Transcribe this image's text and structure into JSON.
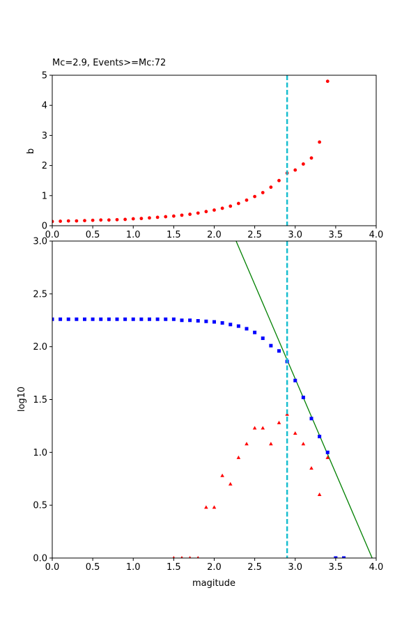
{
  "chart_data": [
    {
      "type": "scatter",
      "title": "Mc=2.9, Events>=Mc:72",
      "xlabel": "",
      "ylabel": "b",
      "xlim": [
        0,
        4
      ],
      "ylim": [
        0,
        5
      ],
      "xticks": [
        "0.0",
        "0.5",
        "1.0",
        "1.5",
        "2.0",
        "2.5",
        "3.0",
        "3.5",
        "4.0"
      ],
      "yticks": [
        "0",
        "1",
        "2",
        "3",
        "4",
        "5"
      ],
      "grid": false,
      "mc_line": 2.9,
      "colors": {
        "points": "#ff0000",
        "mc": "#17becf"
      },
      "series": [
        {
          "x": [
            0.0,
            0.1,
            0.2,
            0.3,
            0.4,
            0.5,
            0.6,
            0.7,
            0.8,
            0.9,
            1.0,
            1.1,
            1.2,
            1.3,
            1.4,
            1.5,
            1.6,
            1.7,
            1.8,
            1.9,
            2.0,
            2.1,
            2.2,
            2.3,
            2.4,
            2.5,
            2.6,
            2.7,
            2.8,
            2.9,
            3.0,
            3.1,
            3.2,
            3.3,
            3.4
          ],
          "y": [
            0.14,
            0.15,
            0.16,
            0.16,
            0.17,
            0.18,
            0.19,
            0.19,
            0.2,
            0.21,
            0.23,
            0.24,
            0.26,
            0.28,
            0.3,
            0.32,
            0.35,
            0.38,
            0.42,
            0.47,
            0.52,
            0.58,
            0.65,
            0.74,
            0.85,
            0.97,
            1.1,
            1.28,
            1.5,
            1.75,
            1.85,
            2.05,
            2.25,
            2.78,
            4.8
          ]
        }
      ]
    },
    {
      "type": "scatter",
      "title": "",
      "xlabel": "magitude",
      "ylabel": "log10",
      "xlim": [
        0,
        4
      ],
      "ylim": [
        0,
        3
      ],
      "xticks": [
        "0.0",
        "0.5",
        "1.0",
        "1.5",
        "2.0",
        "2.5",
        "3.0",
        "3.5",
        "4.0"
      ],
      "yticks": [
        "0.0",
        "0.5",
        "1.0",
        "1.5",
        "2.0",
        "2.5",
        "3.0"
      ],
      "grid": false,
      "mc_line": 2.9,
      "colors": {
        "cumulative": "#0000ff",
        "noncumulative": "#ff0000",
        "fit": "#008000",
        "mc": "#17becf"
      },
      "fit_line": {
        "x": [
          2.27,
          3.95
        ],
        "y": [
          3.0,
          0.0
        ]
      },
      "series": [
        {
          "marker": "square",
          "x": [
            0.0,
            0.1,
            0.2,
            0.3,
            0.4,
            0.5,
            0.6,
            0.7,
            0.8,
            0.9,
            1.0,
            1.1,
            1.2,
            1.3,
            1.4,
            1.5,
            1.6,
            1.7,
            1.8,
            1.9,
            2.0,
            2.1,
            2.2,
            2.3,
            2.4,
            2.5,
            2.6,
            2.7,
            2.8,
            2.9,
            3.0,
            3.1,
            3.2,
            3.3,
            3.4,
            3.5,
            3.6
          ],
          "y": [
            2.26,
            2.26,
            2.26,
            2.26,
            2.26,
            2.26,
            2.26,
            2.26,
            2.26,
            2.26,
            2.26,
            2.26,
            2.26,
            2.26,
            2.26,
            2.26,
            2.25,
            2.25,
            2.245,
            2.24,
            2.235,
            2.225,
            2.21,
            2.195,
            2.17,
            2.135,
            2.08,
            2.01,
            1.96,
            1.86,
            1.68,
            1.52,
            1.32,
            1.15,
            1.0,
            0.0,
            0.0
          ]
        },
        {
          "marker": "triangle",
          "x": [
            1.5,
            1.6,
            1.7,
            1.8,
            1.9,
            2.0,
            2.1,
            2.2,
            2.3,
            2.4,
            2.5,
            2.6,
            2.7,
            2.8,
            2.9,
            3.0,
            3.1,
            3.2,
            3.3,
            3.4
          ],
          "y": [
            0.0,
            0.0,
            0.0,
            0.0,
            0.48,
            0.48,
            0.78,
            0.7,
            0.95,
            1.08,
            1.23,
            1.23,
            1.08,
            1.28,
            1.36,
            1.18,
            1.08,
            0.85,
            0.6,
            0.95
          ]
        }
      ]
    }
  ]
}
